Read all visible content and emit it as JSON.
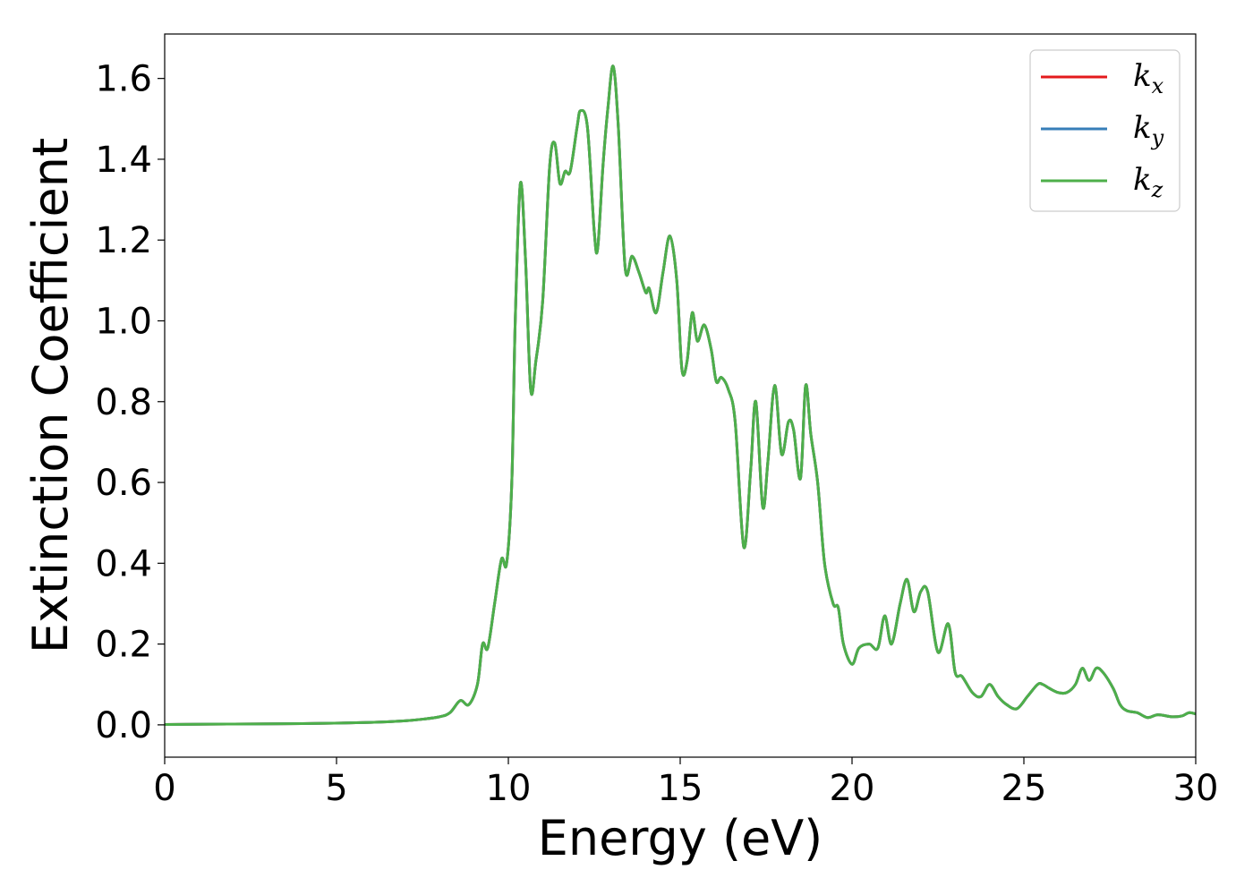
{
  "chart_data": {
    "type": "line",
    "title": "",
    "xlabel": "Energy (eV)",
    "ylabel": "Extinction Coefficient",
    "xlim": [
      0,
      30
    ],
    "ylim": [
      -0.08,
      1.71
    ],
    "xticks": [
      "0",
      "5",
      "10",
      "15",
      "20",
      "25",
      "30"
    ],
    "yticks": [
      "0.0",
      "0.2",
      "0.4",
      "0.6",
      "0.8",
      "1.0",
      "1.2",
      "1.4",
      "1.6"
    ],
    "grid": false,
    "legend_position": "top-right",
    "legend": [
      {
        "base": "k",
        "sub": "x",
        "color": "#e41a1c"
      },
      {
        "base": "k",
        "sub": "y",
        "color": "#377eb8"
      },
      {
        "base": "k",
        "sub": "z",
        "color": "#4daf4a"
      }
    ],
    "x": [
      0,
      2,
      4,
      6,
      7,
      7.5,
      8,
      8.3,
      8.6,
      8.85,
      9.1,
      9.25,
      9.4,
      9.6,
      9.8,
      9.95,
      10.1,
      10.2,
      10.35,
      10.5,
      10.65,
      10.8,
      11.0,
      11.2,
      11.35,
      11.5,
      11.65,
      11.8,
      12.0,
      12.1,
      12.3,
      12.5,
      12.6,
      12.75,
      12.9,
      13.05,
      13.2,
      13.4,
      13.6,
      13.8,
      14.0,
      14.1,
      14.3,
      14.5,
      14.7,
      14.9,
      15.05,
      15.2,
      15.35,
      15.5,
      15.7,
      15.9,
      16.05,
      16.2,
      16.4,
      16.6,
      16.85,
      17.05,
      17.2,
      17.4,
      17.55,
      17.75,
      17.95,
      18.15,
      18.3,
      18.5,
      18.65,
      18.8,
      19.0,
      19.2,
      19.45,
      19.6,
      19.75,
      20.0,
      20.2,
      20.5,
      20.75,
      20.95,
      21.15,
      21.4,
      21.6,
      21.8,
      22.0,
      22.2,
      22.5,
      22.8,
      23.0,
      23.2,
      23.5,
      23.75,
      24.0,
      24.25,
      24.5,
      24.8,
      25.1,
      25.4,
      25.55,
      25.75,
      26.0,
      26.25,
      26.5,
      26.7,
      26.9,
      27.1,
      27.3,
      27.6,
      27.8,
      28.0,
      28.3,
      28.6,
      28.9,
      29.3,
      29.6,
      29.8,
      30.0
    ],
    "series": [
      {
        "name": "k_x",
        "color": "#e41a1c",
        "values": [
          0.001,
          0.002,
          0.003,
          0.006,
          0.01,
          0.014,
          0.02,
          0.03,
          0.06,
          0.05,
          0.1,
          0.2,
          0.19,
          0.3,
          0.41,
          0.4,
          0.6,
          1.0,
          1.34,
          1.15,
          0.83,
          0.9,
          1.05,
          1.38,
          1.44,
          1.34,
          1.37,
          1.37,
          1.48,
          1.52,
          1.48,
          1.22,
          1.18,
          1.38,
          1.53,
          1.63,
          1.48,
          1.13,
          1.16,
          1.12,
          1.07,
          1.08,
          1.02,
          1.12,
          1.21,
          1.1,
          0.88,
          0.9,
          1.02,
          0.95,
          0.99,
          0.93,
          0.85,
          0.86,
          0.83,
          0.75,
          0.44,
          0.63,
          0.8,
          0.54,
          0.65,
          0.84,
          0.67,
          0.75,
          0.73,
          0.61,
          0.84,
          0.72,
          0.6,
          0.4,
          0.3,
          0.29,
          0.2,
          0.15,
          0.19,
          0.2,
          0.19,
          0.27,
          0.2,
          0.3,
          0.36,
          0.28,
          0.33,
          0.33,
          0.18,
          0.25,
          0.13,
          0.12,
          0.08,
          0.07,
          0.1,
          0.07,
          0.05,
          0.04,
          0.07,
          0.1,
          0.1,
          0.09,
          0.08,
          0.08,
          0.1,
          0.14,
          0.11,
          0.14,
          0.13,
          0.09,
          0.05,
          0.035,
          0.03,
          0.018,
          0.025,
          0.02,
          0.022,
          0.03,
          0.027
        ]
      },
      {
        "name": "k_y",
        "color": "#377eb8",
        "values": [
          0.001,
          0.002,
          0.003,
          0.006,
          0.01,
          0.014,
          0.02,
          0.03,
          0.06,
          0.05,
          0.1,
          0.2,
          0.19,
          0.3,
          0.41,
          0.4,
          0.6,
          1.0,
          1.34,
          1.15,
          0.83,
          0.9,
          1.05,
          1.38,
          1.44,
          1.34,
          1.37,
          1.37,
          1.48,
          1.52,
          1.48,
          1.22,
          1.18,
          1.38,
          1.53,
          1.63,
          1.48,
          1.13,
          1.16,
          1.12,
          1.07,
          1.08,
          1.02,
          1.12,
          1.21,
          1.1,
          0.88,
          0.9,
          1.02,
          0.95,
          0.99,
          0.93,
          0.85,
          0.86,
          0.83,
          0.75,
          0.44,
          0.63,
          0.8,
          0.54,
          0.65,
          0.84,
          0.67,
          0.75,
          0.73,
          0.61,
          0.84,
          0.72,
          0.6,
          0.4,
          0.3,
          0.29,
          0.2,
          0.15,
          0.19,
          0.2,
          0.19,
          0.27,
          0.2,
          0.3,
          0.36,
          0.28,
          0.33,
          0.33,
          0.18,
          0.25,
          0.13,
          0.12,
          0.08,
          0.07,
          0.1,
          0.07,
          0.05,
          0.04,
          0.07,
          0.1,
          0.1,
          0.09,
          0.08,
          0.08,
          0.1,
          0.14,
          0.11,
          0.14,
          0.13,
          0.09,
          0.05,
          0.035,
          0.03,
          0.018,
          0.025,
          0.02,
          0.022,
          0.03,
          0.027
        ]
      },
      {
        "name": "k_z",
        "color": "#4daf4a",
        "values": [
          0.001,
          0.002,
          0.003,
          0.006,
          0.01,
          0.014,
          0.02,
          0.03,
          0.06,
          0.05,
          0.1,
          0.2,
          0.19,
          0.3,
          0.41,
          0.4,
          0.6,
          1.0,
          1.34,
          1.15,
          0.83,
          0.9,
          1.05,
          1.38,
          1.44,
          1.34,
          1.37,
          1.37,
          1.48,
          1.52,
          1.48,
          1.22,
          1.18,
          1.38,
          1.53,
          1.63,
          1.48,
          1.13,
          1.16,
          1.12,
          1.07,
          1.08,
          1.02,
          1.12,
          1.21,
          1.1,
          0.88,
          0.9,
          1.02,
          0.95,
          0.99,
          0.93,
          0.85,
          0.86,
          0.83,
          0.75,
          0.44,
          0.63,
          0.8,
          0.54,
          0.65,
          0.84,
          0.67,
          0.75,
          0.73,
          0.61,
          0.84,
          0.72,
          0.6,
          0.4,
          0.3,
          0.29,
          0.2,
          0.15,
          0.19,
          0.2,
          0.19,
          0.27,
          0.2,
          0.3,
          0.36,
          0.28,
          0.33,
          0.33,
          0.18,
          0.25,
          0.13,
          0.12,
          0.08,
          0.07,
          0.1,
          0.07,
          0.05,
          0.04,
          0.07,
          0.1,
          0.1,
          0.09,
          0.08,
          0.08,
          0.1,
          0.14,
          0.11,
          0.14,
          0.13,
          0.09,
          0.05,
          0.035,
          0.03,
          0.018,
          0.025,
          0.02,
          0.022,
          0.03,
          0.027
        ]
      }
    ]
  }
}
